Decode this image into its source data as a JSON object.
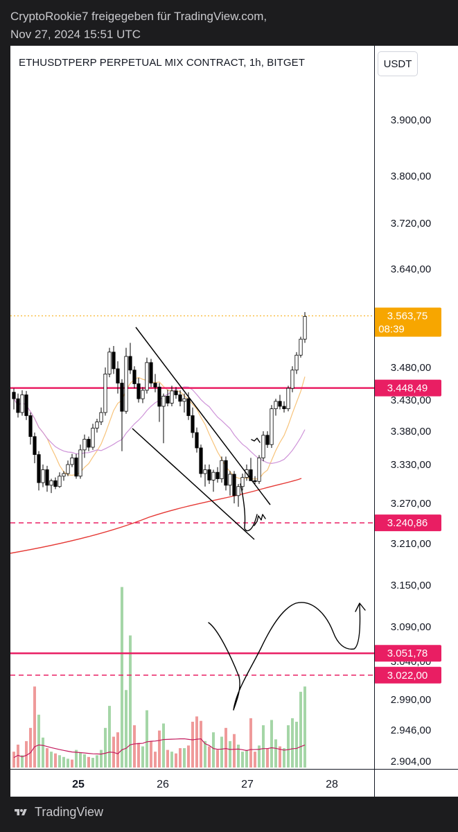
{
  "share": {
    "line1": "CryptoRookie7 freigegeben für TradingView.com,",
    "line2": "Nov 27, 2024 15:51 UTC"
  },
  "footer": {
    "brand": "TradingView",
    "icon": "tradingview-logo-icon"
  },
  "chart_data": {
    "type": "candlestick",
    "title": "ETHUSDTPERP PERPETUAL MIX CONTRACT, 1h, BITGET",
    "currency": "USDT",
    "price_ticks": [
      "3.900,00",
      "3.800,00",
      "3.720,00",
      "3.640,00",
      "3.480,00",
      "3.430,00",
      "3.380,00",
      "3.330,00",
      "3.270,00",
      "3.210,00",
      "3.150,00",
      "3.090,00",
      "3.040,00",
      "2.990,00",
      "2.946,00",
      "2.904,00"
    ],
    "time_ticks": [
      "25",
      "26",
      "27",
      "28"
    ],
    "last_price": {
      "value": "3.563,75",
      "countdown": "08:39",
      "color": "#f7a600"
    },
    "horizontal_levels": [
      {
        "value": "3.448,49",
        "style": "solid",
        "color": "#e91e63"
      },
      {
        "value": "3.240,86",
        "style": "dashed",
        "color": "#e91e63"
      },
      {
        "value": "3.051,78",
        "style": "solid",
        "color": "#e91e63"
      },
      {
        "value": "3.022,00",
        "style": "dashed",
        "color": "#e91e63"
      }
    ],
    "colors": {
      "up": "#ffffff",
      "down": "#000000",
      "vol_up": "#a5d6a7",
      "vol_down": "#ef9a9a",
      "ma_fast": "#f7c37a",
      "ma_mid": "#ce93d8",
      "ma_slow": "#e53935",
      "vol_ma": "#c2185b"
    },
    "candles_ohlc": [
      [
        3442,
        3448,
        3415,
        3432
      ],
      [
        3432,
        3440,
        3402,
        3410
      ],
      [
        3410,
        3445,
        3405,
        3438
      ],
      [
        3438,
        3444,
        3398,
        3405
      ],
      [
        3405,
        3410,
        3360,
        3372
      ],
      [
        3372,
        3378,
        3332,
        3345
      ],
      [
        3345,
        3350,
        3290,
        3302
      ],
      [
        3302,
        3330,
        3295,
        3322
      ],
      [
        3322,
        3328,
        3288,
        3298
      ],
      [
        3298,
        3308,
        3286,
        3305
      ],
      [
        3305,
        3310,
        3292,
        3296
      ],
      [
        3296,
        3318,
        3294,
        3312
      ],
      [
        3312,
        3320,
        3305,
        3316
      ],
      [
        3316,
        3336,
        3312,
        3330
      ],
      [
        3330,
        3346,
        3326,
        3340
      ],
      [
        3340,
        3346,
        3308,
        3312
      ],
      [
        3312,
        3360,
        3308,
        3352
      ],
      [
        3352,
        3375,
        3340,
        3368
      ],
      [
        3368,
        3372,
        3350,
        3356
      ],
      [
        3356,
        3392,
        3352,
        3385
      ],
      [
        3385,
        3400,
        3378,
        3395
      ],
      [
        3395,
        3418,
        3390,
        3410
      ],
      [
        3410,
        3480,
        3405,
        3470
      ],
      [
        3470,
        3512,
        3465,
        3505
      ],
      [
        3505,
        3515,
        3470,
        3478
      ],
      [
        3478,
        3490,
        3440,
        3456
      ],
      [
        3456,
        3462,
        3350,
        3412
      ],
      [
        3412,
        3512,
        3408,
        3498
      ],
      [
        3498,
        3520,
        3470,
        3476
      ],
      [
        3476,
        3482,
        3448,
        3455
      ],
      [
        3455,
        3464,
        3426,
        3432
      ],
      [
        3432,
        3450,
        3425,
        3445
      ],
      [
        3445,
        3496,
        3440,
        3488
      ],
      [
        3488,
        3494,
        3450,
        3456
      ],
      [
        3456,
        3470,
        3442,
        3450
      ],
      [
        3450,
        3456,
        3395,
        3420
      ],
      [
        3420,
        3440,
        3362,
        3436
      ],
      [
        3436,
        3446,
        3420,
        3425
      ],
      [
        3425,
        3452,
        3420,
        3444
      ],
      [
        3444,
        3450,
        3432,
        3438
      ],
      [
        3438,
        3445,
        3420,
        3428
      ],
      [
        3428,
        3440,
        3410,
        3432
      ],
      [
        3432,
        3442,
        3398,
        3405
      ],
      [
        3405,
        3418,
        3370,
        3378
      ],
      [
        3378,
        3386,
        3348,
        3355
      ],
      [
        3355,
        3360,
        3310,
        3316
      ],
      [
        3316,
        3330,
        3296,
        3322
      ],
      [
        3322,
        3330,
        3300,
        3306
      ],
      [
        3306,
        3322,
        3288,
        3318
      ],
      [
        3318,
        3326,
        3302,
        3308
      ],
      [
        3308,
        3342,
        3302,
        3336
      ],
      [
        3336,
        3342,
        3290,
        3298
      ],
      [
        3298,
        3320,
        3282,
        3315
      ],
      [
        3315,
        3320,
        3270,
        3282
      ],
      [
        3282,
        3300,
        3265,
        3296
      ],
      [
        3296,
        3316,
        3290,
        3310
      ],
      [
        3310,
        3330,
        3305,
        3322
      ],
      [
        3322,
        3340,
        3316,
        3305
      ],
      [
        3305,
        3312,
        3300,
        3304
      ],
      [
        3304,
        3344,
        3300,
        3340
      ],
      [
        3340,
        3380,
        3335,
        3374
      ],
      [
        3374,
        3380,
        3355,
        3360
      ],
      [
        3360,
        3422,
        3355,
        3416
      ],
      [
        3416,
        3432,
        3405,
        3428
      ],
      [
        3428,
        3438,
        3415,
        3420
      ],
      [
        3420,
        3428,
        3410,
        3416
      ],
      [
        3416,
        3452,
        3412,
        3448
      ],
      [
        3448,
        3482,
        3442,
        3476
      ],
      [
        3476,
        3505,
        3470,
        3500
      ],
      [
        3500,
        3530,
        3496,
        3526
      ],
      [
        3526,
        3570,
        3520,
        3563
      ]
    ],
    "volume_bars": [
      {
        "v": 18,
        "dir": "down"
      },
      {
        "v": 26,
        "dir": "down"
      },
      {
        "v": 14,
        "dir": "up"
      },
      {
        "v": 30,
        "dir": "down"
      },
      {
        "v": 45,
        "dir": "down"
      },
      {
        "v": 92,
        "dir": "down"
      },
      {
        "v": 60,
        "dir": "up"
      },
      {
        "v": 34,
        "dir": "up"
      },
      {
        "v": 22,
        "dir": "down"
      },
      {
        "v": 18,
        "dir": "up"
      },
      {
        "v": 16,
        "dir": "down"
      },
      {
        "v": 14,
        "dir": "up"
      },
      {
        "v": 12,
        "dir": "up"
      },
      {
        "v": 10,
        "dir": "up"
      },
      {
        "v": 9,
        "dir": "down"
      },
      {
        "v": 20,
        "dir": "up"
      },
      {
        "v": 17,
        "dir": "up"
      },
      {
        "v": 15,
        "dir": "up"
      },
      {
        "v": 12,
        "dir": "down"
      },
      {
        "v": 11,
        "dir": "up"
      },
      {
        "v": 14,
        "dir": "up"
      },
      {
        "v": 20,
        "dir": "up"
      },
      {
        "v": 45,
        "dir": "up"
      },
      {
        "v": 70,
        "dir": "up"
      },
      {
        "v": 35,
        "dir": "down"
      },
      {
        "v": 40,
        "dir": "down"
      },
      {
        "v": 205,
        "dir": "up"
      },
      {
        "v": 88,
        "dir": "up"
      },
      {
        "v": 150,
        "dir": "up"
      },
      {
        "v": 48,
        "dir": "down"
      },
      {
        "v": 28,
        "dir": "down"
      },
      {
        "v": 24,
        "dir": "up"
      },
      {
        "v": 65,
        "dir": "up"
      },
      {
        "v": 30,
        "dir": "down"
      },
      {
        "v": 18,
        "dir": "down"
      },
      {
        "v": 42,
        "dir": "down"
      },
      {
        "v": 50,
        "dir": "up"
      },
      {
        "v": 20,
        "dir": "down"
      },
      {
        "v": 18,
        "dir": "up"
      },
      {
        "v": 16,
        "dir": "down"
      },
      {
        "v": 22,
        "dir": "down"
      },
      {
        "v": 22,
        "dir": "up"
      },
      {
        "v": 25,
        "dir": "down"
      },
      {
        "v": 52,
        "dir": "down"
      },
      {
        "v": 58,
        "dir": "down"
      },
      {
        "v": 53,
        "dir": "down"
      },
      {
        "v": 30,
        "dir": "up"
      },
      {
        "v": 24,
        "dir": "down"
      },
      {
        "v": 40,
        "dir": "up"
      },
      {
        "v": 20,
        "dir": "down"
      },
      {
        "v": 35,
        "dir": "up"
      },
      {
        "v": 45,
        "dir": "down"
      },
      {
        "v": 30,
        "dir": "up"
      },
      {
        "v": 38,
        "dir": "down"
      },
      {
        "v": 26,
        "dir": "up"
      },
      {
        "v": 18,
        "dir": "up"
      },
      {
        "v": 20,
        "dir": "up"
      },
      {
        "v": 56,
        "dir": "down"
      },
      {
        "v": 18,
        "dir": "down"
      },
      {
        "v": 25,
        "dir": "up"
      },
      {
        "v": 48,
        "dir": "up"
      },
      {
        "v": 22,
        "dir": "down"
      },
      {
        "v": 54,
        "dir": "up"
      },
      {
        "v": 32,
        "dir": "up"
      },
      {
        "v": 24,
        "dir": "down"
      },
      {
        "v": 22,
        "dir": "up"
      },
      {
        "v": 48,
        "dir": "up"
      },
      {
        "v": 56,
        "dir": "up"
      },
      {
        "v": 52,
        "dir": "up"
      },
      {
        "v": 86,
        "dir": "up"
      },
      {
        "v": 92,
        "dir": "up"
      }
    ]
  }
}
